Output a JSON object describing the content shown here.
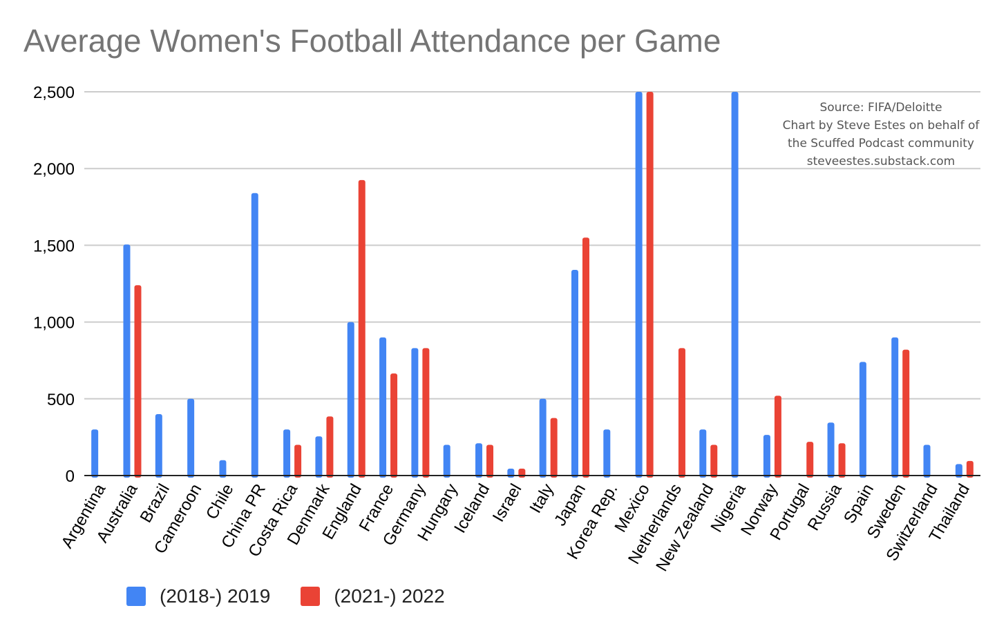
{
  "chart_data": {
    "type": "bar",
    "title": "Average Women's Football Attendance per Game",
    "categories": [
      "Argentina",
      "Australia",
      "Brazil",
      "Cameroon",
      "Chile",
      "China PR",
      "Costa Rica",
      "Denmark",
      "England",
      "France",
      "Germany",
      "Hungary",
      "Iceland",
      "Israel",
      "Italy",
      "Japan",
      "Korea Rep.",
      "Mexico",
      "Netherlands",
      "New Zealand",
      "Nigeria",
      "Norway",
      "Portugal",
      "Russia",
      "Spain",
      "Sweden",
      "Switzerland",
      "Thailand"
    ],
    "series": [
      {
        "name": "(2018-) 2019",
        "color": "#4285f4",
        "values": [
          300,
          1505,
          400,
          500,
          100,
          1840,
          300,
          255,
          1000,
          900,
          830,
          200,
          210,
          45,
          500,
          1340,
          300,
          2500,
          null,
          300,
          2500,
          265,
          null,
          345,
          740,
          900,
          200,
          75
        ]
      },
      {
        "name": "(2021-) 2022",
        "color": "#ea4335",
        "values": [
          null,
          1240,
          null,
          null,
          null,
          null,
          200,
          385,
          1925,
          665,
          830,
          null,
          200,
          45,
          375,
          1550,
          null,
          2500,
          830,
          200,
          null,
          520,
          220,
          210,
          null,
          820,
          null,
          95
        ]
      }
    ],
    "ylim": [
      0,
      2500
    ],
    "yticks": [
      0,
      500,
      1000,
      1500,
      2000,
      2500
    ],
    "ytick_labels": [
      "0",
      "500",
      "1,000",
      "1,500",
      "2,000",
      "2,500"
    ],
    "grid": true,
    "legend_position": "bottom",
    "annotation": [
      "Source: FIFA/Deloitte",
      "Chart by Steve Estes on behalf of",
      "the Scuffed Podcast community",
      "steveestes.substack.com"
    ]
  }
}
